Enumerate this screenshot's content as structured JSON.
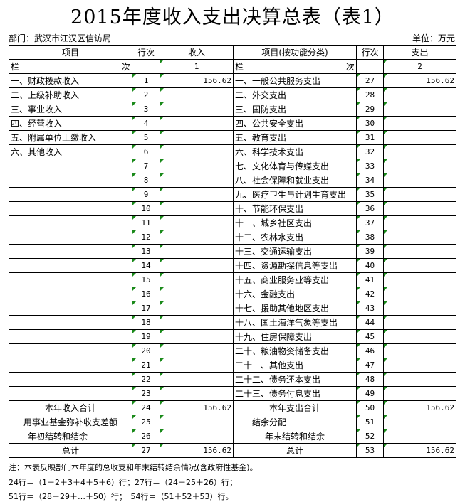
{
  "title": "2015年度收入支出决算总表（表1）",
  "department": "部门：武汉市江汉区信访局",
  "unit": "单位：万元",
  "headers": {
    "item": "项目",
    "row_no": "行次",
    "income": "收入",
    "item_func": "项目(按功能分类)",
    "row_no2": "行次",
    "expense": "支出"
  },
  "lanci": {
    "left": "栏",
    "right": "次",
    "col_income": "1",
    "col_expense": "2"
  },
  "rows": [
    {
      "l": "一、财政拨款收入",
      "ln": "1",
      "lv": "156.62",
      "r": "一、一般公共服务支出",
      "rn": "27",
      "rv": "156.62"
    },
    {
      "l": "二、上级补助收入",
      "ln": "2",
      "lv": "",
      "r": "二、外交支出",
      "rn": "28",
      "rv": ""
    },
    {
      "l": "三、事业收入",
      "ln": "3",
      "lv": "",
      "r": "三、国防支出",
      "rn": "29",
      "rv": ""
    },
    {
      "l": "四、经营收入",
      "ln": "4",
      "lv": "",
      "r": "四、公共安全支出",
      "rn": "30",
      "rv": ""
    },
    {
      "l": "五、附属单位上缴收入",
      "ln": "5",
      "lv": "",
      "r": "五、教育支出",
      "rn": "31",
      "rv": ""
    },
    {
      "l": "六、其他收入",
      "ln": "6",
      "lv": "",
      "r": "六、科学技术支出",
      "rn": "32",
      "rv": ""
    },
    {
      "l": "",
      "ln": "7",
      "lv": "",
      "r": "七、文化体育与传媒支出",
      "rn": "33",
      "rv": ""
    },
    {
      "l": "",
      "ln": "8",
      "lv": "",
      "r": "八、社会保障和就业支出",
      "rn": "34",
      "rv": ""
    },
    {
      "l": "",
      "ln": "9",
      "lv": "",
      "r": "九、医疗卫生与计划生育支出",
      "rn": "35",
      "rv": ""
    },
    {
      "l": "",
      "ln": "10",
      "lv": "",
      "r": "十、节能环保支出",
      "rn": "36",
      "rv": ""
    },
    {
      "l": "",
      "ln": "11",
      "lv": "",
      "r": "十一、城乡社区支出",
      "rn": "37",
      "rv": ""
    },
    {
      "l": "",
      "ln": "12",
      "lv": "",
      "r": "十二、农林水支出",
      "rn": "38",
      "rv": ""
    },
    {
      "l": "",
      "ln": "13",
      "lv": "",
      "r": "十三、交通运输支出",
      "rn": "39",
      "rv": ""
    },
    {
      "l": "",
      "ln": "14",
      "lv": "",
      "r": "十四、资源勘探信息等支出",
      "rn": "40",
      "rv": ""
    },
    {
      "l": "",
      "ln": "15",
      "lv": "",
      "r": "十五、商业服务业等支出",
      "rn": "41",
      "rv": ""
    },
    {
      "l": "",
      "ln": "16",
      "lv": "",
      "r": "十六、金融支出",
      "rn": "42",
      "rv": ""
    },
    {
      "l": "",
      "ln": "17",
      "lv": "",
      "r": "十七、援助其他地区支出",
      "rn": "43",
      "rv": ""
    },
    {
      "l": "",
      "ln": "18",
      "lv": "",
      "r": "十八、国土海洋气象等支出",
      "rn": "44",
      "rv": ""
    },
    {
      "l": "",
      "ln": "19",
      "lv": "",
      "r": "十九、住房保障支出",
      "rn": "45",
      "rv": ""
    },
    {
      "l": "",
      "ln": "20",
      "lv": "",
      "r": "二十、粮油物资储备支出",
      "rn": "46",
      "rv": ""
    },
    {
      "l": "",
      "ln": "21",
      "lv": "",
      "r": "二十一、其他支出",
      "rn": "47",
      "rv": ""
    },
    {
      "l": "",
      "ln": "22",
      "lv": "",
      "r": "二十二、债务还本支出",
      "rn": "48",
      "rv": ""
    },
    {
      "l": "",
      "ln": "23",
      "lv": "",
      "r": "二十三、债务付息支出",
      "rn": "49",
      "rv": ""
    }
  ],
  "summary": [
    {
      "l": "本年收入合计",
      "ln": "24",
      "lv": "156.62",
      "r": "本年支出合计",
      "rn": "50",
      "rv": "156.62",
      "la": "center",
      "ra": "center"
    },
    {
      "l": "用事业基金弥补收支差额",
      "ln": "25",
      "lv": "",
      "r": "结余分配",
      "rn": "51",
      "rv": "",
      "la": "center",
      "ra": "indent"
    },
    {
      "l": "年初结转和结余",
      "ln": "26",
      "lv": "",
      "r": "年末结转和结余",
      "rn": "52",
      "rv": "",
      "la": "indent",
      "ra": "center"
    },
    {
      "l": "总计",
      "ln": "27",
      "lv": "156.62",
      "r": "总计",
      "rn": "53",
      "rv": "156.62",
      "la": "center",
      "ra": "center"
    }
  ],
  "notes": [
    "注：本表反映部门本年度的总收支和年末结转结余情况(含政府性基金)。",
    "24行＝（1＋2＋3＋4＋5＋6）行；27行＝（24＋25＋26）行；",
    "51行＝（28＋29＋…＋50）行；　54行＝（51＋52＋53）行。"
  ]
}
